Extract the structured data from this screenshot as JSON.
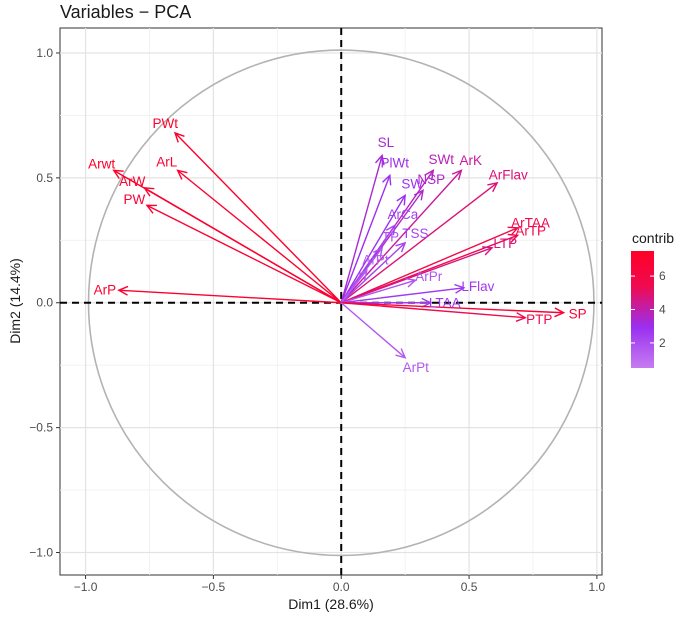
{
  "chart_data": {
    "type": "scatter",
    "subtype": "pca-variable-correlation-circle",
    "title": "Variables − PCA",
    "xlabel": "Dim1 (28.6%)",
    "ylabel": "Dim2 (14.4%)",
    "xlim": [
      -1.1,
      1.02
    ],
    "ylim": [
      -1.09,
      1.1
    ],
    "xticks": [
      -1.0,
      -0.5,
      0.0,
      0.5,
      1.0
    ],
    "yticks": [
      -1.0,
      -0.5,
      0.0,
      0.5,
      1.0
    ],
    "xtick_labels": [
      "−1.0",
      "−0.5",
      "0.0",
      "0.5",
      "1.0"
    ],
    "ytick_labels": [
      "−1.0",
      "−0.5",
      "0.0",
      "0.5",
      "1.0"
    ],
    "grid": true,
    "reference_lines": "dashed x=0 and y=0",
    "unit_circle": true,
    "legend": {
      "title": "contrib",
      "position": "right",
      "ticks": [
        2,
        4,
        6
      ],
      "range": [
        0.5,
        7.5
      ],
      "colors": [
        "#c67cf0",
        "#9a2ff0",
        "#f00a50",
        "#ff0026"
      ]
    },
    "variables": [
      {
        "name": "PWt",
        "x": -0.65,
        "y": 0.68,
        "contrib": 7.2
      },
      {
        "name": "ArL",
        "x": -0.64,
        "y": 0.53,
        "contrib": 7.0
      },
      {
        "name": "Arwt",
        "x": -0.89,
        "y": 0.53,
        "contrib": 7.4
      },
      {
        "name": "ArW",
        "x": -0.77,
        "y": 0.46,
        "contrib": 7.0
      },
      {
        "name": "PW",
        "x": -0.76,
        "y": 0.39,
        "contrib": 6.8
      },
      {
        "name": "ArP",
        "x": -0.87,
        "y": 0.05,
        "contrib": 7.1
      },
      {
        "name": "SL",
        "x": 0.16,
        "y": 0.59,
        "contrib": 3.4
      },
      {
        "name": "PlWt",
        "x": 0.19,
        "y": 0.51,
        "contrib": 3.0
      },
      {
        "name": "SW",
        "x": 0.25,
        "y": 0.43,
        "contrib": 2.9
      },
      {
        "name": "SWt",
        "x": 0.36,
        "y": 0.53,
        "contrib": 3.8
      },
      {
        "name": "ArK",
        "x": 0.47,
        "y": 0.53,
        "contrib": 4.2
      },
      {
        "name": "ArFlav",
        "x": 0.61,
        "y": 0.48,
        "contrib": 4.8
      },
      {
        "name": "NSP",
        "x": 0.32,
        "y": 0.45,
        "contrib": 3.5
      },
      {
        "name": "ArTAA",
        "x": 0.69,
        "y": 0.3,
        "contrib": 5.6
      },
      {
        "name": "ArTP",
        "x": 0.69,
        "y": 0.27,
        "contrib": 5.6
      },
      {
        "name": "LTP",
        "x": 0.59,
        "y": 0.22,
        "contrib": 4.6
      },
      {
        "name": "ArCa",
        "x": 0.21,
        "y": 0.31,
        "contrib": 2.4
      },
      {
        "name": "TSS",
        "x": 0.25,
        "y": 0.24,
        "contrib": 2.3
      },
      {
        "name": "TP",
        "x": 0.16,
        "y": 0.22,
        "contrib": 1.8
      },
      {
        "name": "ArPt",
        "x": 0.1,
        "y": 0.13,
        "contrib": 1.5
      },
      {
        "name": "ArPr",
        "x": 0.29,
        "y": 0.09,
        "contrib": 1.8
      },
      {
        "name": "LFlav",
        "x": 0.48,
        "y": 0.06,
        "contrib": 2.6
      },
      {
        "name": "LTAA",
        "x": 0.35,
        "y": 0.0,
        "contrib": 2.6
      },
      {
        "name": "PTP",
        "x": 0.72,
        "y": -0.06,
        "contrib": 5.5
      },
      {
        "name": "SP",
        "x": 0.87,
        "y": -0.04,
        "contrib": 6.8
      },
      {
        "name": "ArPt",
        "x": 0.25,
        "y": -0.22,
        "contrib": 1.6
      }
    ]
  }
}
